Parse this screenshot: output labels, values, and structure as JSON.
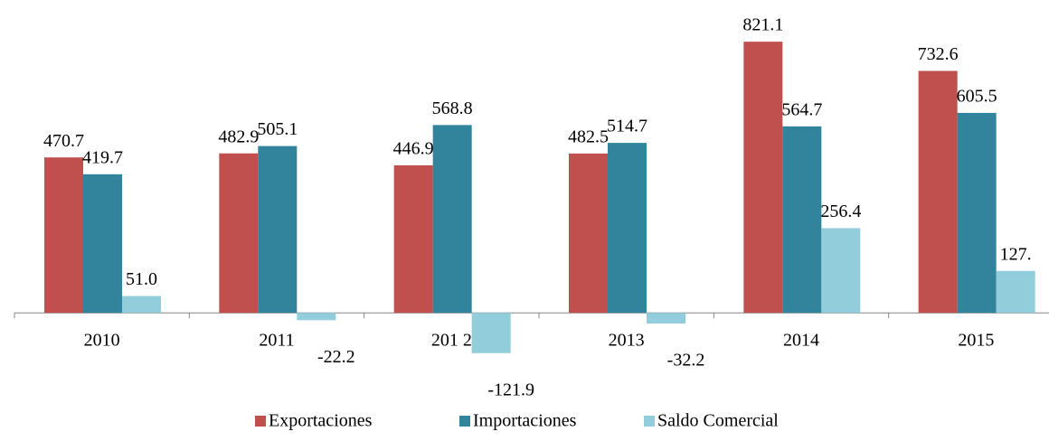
{
  "chart_data": {
    "type": "bar",
    "categories": [
      "2010",
      "2011",
      "201 2",
      "2013",
      "2014",
      "2015"
    ],
    "series": [
      {
        "name": "Exportaciones",
        "color": "#c0504d",
        "values": [
          470.7,
          482.9,
          446.9,
          482.5,
          821.1,
          732.6
        ],
        "value_labels": [
          "470.7",
          "482.9",
          "446.9",
          "482.5",
          "821.1",
          "732.6"
        ]
      },
      {
        "name": "Importaciones",
        "color": "#31849b",
        "values": [
          419.7,
          505.1,
          568.8,
          514.7,
          564.7,
          605.5
        ],
        "value_labels": [
          "419.7",
          "505.1",
          "568.8",
          "514.7",
          "564.7",
          "605.5"
        ]
      },
      {
        "name": "Saldo Comercial",
        "color": "#92cddc",
        "values": [
          51.0,
          -22.2,
          -121.9,
          -32.2,
          256.4,
          127
        ],
        "value_labels": [
          "51.0",
          "-22.2",
          "-121.9",
          "-32.2",
          "256.4",
          "127."
        ]
      }
    ],
    "ylim": [
      -200,
      920
    ],
    "legend": "bottom"
  }
}
